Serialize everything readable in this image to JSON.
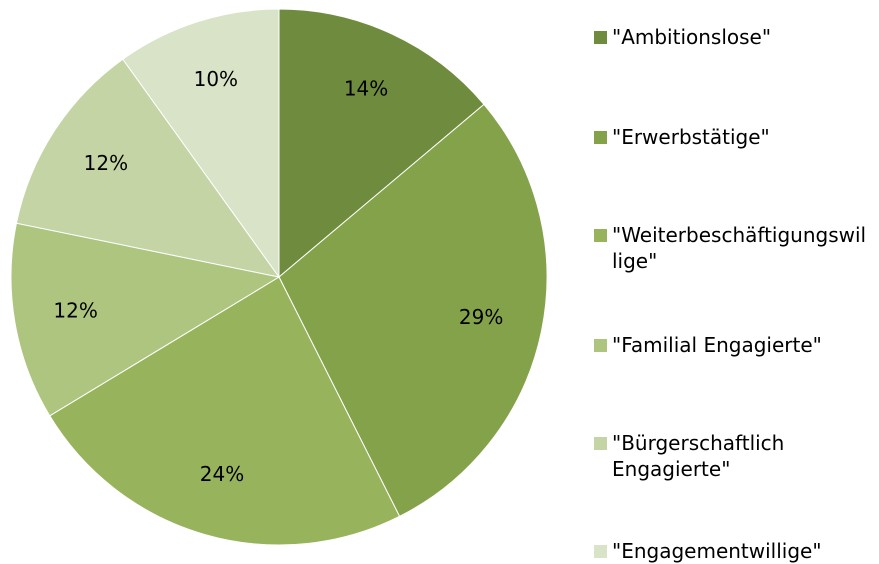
{
  "chart_data": {
    "type": "pie",
    "categories": [
      "\"Ambitionslose\"",
      "\"Erwerbstätige\"",
      "\"Weiterbeschäftigungswillige\"",
      "\"Familial Engagierte\"",
      "\"Bürgerschaftlich Engagierte\"",
      "\"Engagementwillige\""
    ],
    "values": [
      14,
      29,
      24,
      12,
      12,
      10
    ],
    "value_labels": [
      "14%",
      "29%",
      "24%",
      "12%",
      "12%",
      "10%"
    ],
    "colors": [
      "#6f8c3e",
      "#84a24a",
      "#97b45c",
      "#aec580",
      "#c4d4a5",
      "#d8e3c7"
    ],
    "legend": "right"
  }
}
